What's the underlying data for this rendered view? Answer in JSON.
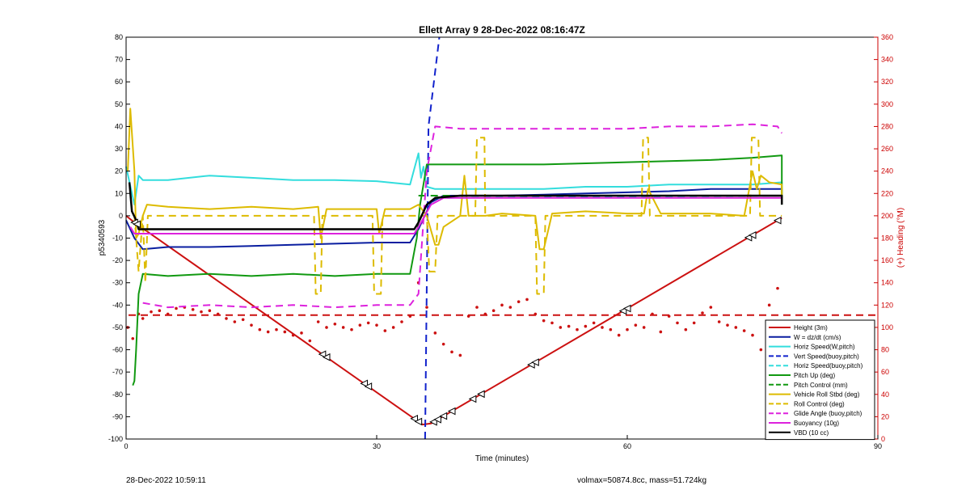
{
  "footer": {
    "timestamp": "28-Dec-2022 10:59:11",
    "stats": "volmax=50874.8cc, mass=51.724kg"
  },
  "chart_data": {
    "type": "line",
    "title": "Ellett Array 9 28-Dec-2022 08:16:47Z",
    "xlabel": "Time (minutes)",
    "ylabel": "p5340593",
    "y2label": "(+) Heading (°M)",
    "xlim": [
      0,
      90
    ],
    "ylim": [
      -100,
      80
    ],
    "y2lim": [
      0,
      360
    ],
    "xticks": [
      0,
      30,
      60,
      90
    ],
    "yticks": [
      -100,
      -90,
      -80,
      -70,
      -60,
      -50,
      -40,
      -30,
      -20,
      -10,
      0,
      10,
      20,
      30,
      40,
      50,
      60,
      70,
      80
    ],
    "y2ticks": [
      0,
      20,
      40,
      60,
      80,
      100,
      120,
      140,
      160,
      180,
      200,
      220,
      240,
      260,
      280,
      300,
      320,
      340,
      360
    ],
    "grid": false,
    "legend_position": "bottom-right",
    "axis_color": "#000000",
    "axis2_color": "#cc0000",
    "series": [
      {
        "name": "Height (3m)",
        "color": "#cc1111",
        "style": "solid",
        "width": 2,
        "x": [
          0,
          1,
          35.5,
          36.5,
          78.5
        ],
        "y": [
          0,
          -3,
          -93.5,
          -93,
          -1
        ]
      },
      {
        "name": "W = dz/dt (cm/s)",
        "color": "#0a1ea0",
        "style": "solid",
        "width": 2,
        "x": [
          0,
          1,
          2,
          5,
          10,
          15,
          20,
          25,
          30,
          34,
          35,
          36.5,
          38,
          45,
          50,
          55,
          60,
          65,
          70,
          75,
          78.5,
          78.5
        ],
        "y": [
          -2,
          -10,
          -15,
          -14,
          -14,
          -13.5,
          -13,
          -12.5,
          -12,
          -12,
          -6,
          6,
          9,
          9,
          9.5,
          10,
          10.5,
          11,
          12,
          12,
          12,
          6
        ]
      },
      {
        "name": "Horiz Speed(W,pitch)",
        "color": "#33dddd",
        "style": "solid",
        "width": 2,
        "x": [
          0,
          1,
          1.5,
          2,
          5,
          10,
          15,
          20,
          25,
          30,
          34,
          35,
          35.3,
          35.6,
          36,
          37,
          40,
          45,
          50,
          55,
          60,
          65,
          70,
          75,
          78.5,
          78.5
        ],
        "y": [
          22,
          5,
          18,
          16,
          16,
          18,
          17,
          16,
          16,
          15.5,
          14,
          28,
          17,
          22,
          13,
          12,
          12,
          12,
          12,
          13,
          13,
          14,
          14,
          14,
          15,
          8
        ]
      },
      {
        "name": "Vert Speed(buoy,pitch)",
        "color": "#1122cc",
        "style": "dashed",
        "width": 2,
        "x": [
          35.8,
          36.2,
          37.5
        ],
        "y": [
          -100,
          40,
          80
        ]
      },
      {
        "name": "Horiz Speed(buoy,pitch)",
        "color": "#33dddd",
        "style": "dashed",
        "width": 2,
        "x": [
          37,
          78.5
        ],
        "y": [
          8,
          9
        ]
      },
      {
        "name": "Pitch Up (deg)",
        "color": "#119911",
        "style": "solid",
        "width": 2,
        "x": [
          0.8,
          1,
          1.2,
          1.5,
          2,
          5,
          10,
          15,
          20,
          25,
          30,
          34,
          34.8,
          35.2,
          36,
          40,
          50,
          60,
          70,
          75,
          78.5,
          78.5
        ],
        "y": [
          -76,
          -74,
          -60,
          -35,
          -26,
          -27,
          -26,
          -27,
          -26,
          -27,
          -26,
          -26,
          -10,
          5,
          23,
          23,
          23,
          24,
          25,
          26,
          27,
          5
        ]
      },
      {
        "name": "Pitch Control (mm)",
        "color": "#119911",
        "style": "dashed",
        "width": 2,
        "x": [
          35,
          78.5
        ],
        "y": [
          9,
          9
        ]
      },
      {
        "name": "Vehicle Roll Stbd (deg)",
        "color": "#ddbb00",
        "style": "solid",
        "width": 2,
        "x": [
          0.2,
          0.5,
          1,
          1.2,
          1.5,
          2,
          2.5,
          5,
          10,
          15,
          20,
          23,
          23.3,
          24,
          30,
          30.3,
          31,
          34,
          35,
          36,
          37,
          37.4,
          38,
          40,
          40.5,
          41,
          43,
          45,
          49,
          49.5,
          50,
          51,
          55,
          60,
          62,
          62.5,
          64,
          70,
          74,
          75,
          75.5,
          76,
          77,
          78.5,
          78.5
        ],
        "y": [
          20,
          48,
          20,
          -10,
          -8,
          0,
          5,
          4,
          3,
          4,
          3,
          4,
          -10,
          3,
          3,
          -8,
          3,
          3,
          5,
          0,
          -13,
          -13,
          -5,
          0,
          18,
          0,
          0,
          1,
          0,
          -15,
          -15,
          1,
          2,
          1,
          1,
          12,
          1,
          1,
          0,
          20,
          12,
          18,
          15,
          14,
          6
        ]
      },
      {
        "name": "Roll Control (deg)",
        "color": "#ddbb00",
        "style": "dashed",
        "width": 2,
        "x": [
          1,
          1.5,
          2,
          2.3,
          2.6,
          22.5,
          22.7,
          23.3,
          23.5,
          29.5,
          29.7,
          30.5,
          30.7,
          36,
          36.3,
          37,
          37.3,
          41.8,
          42,
          42.9,
          43,
          49,
          49.2,
          50,
          50.2,
          61.7,
          61.9,
          62.5,
          62.7,
          74.7,
          74.9,
          75.7,
          75.9,
          78.5
        ],
        "y": [
          0,
          -25,
          0,
          -30,
          0,
          0,
          -35,
          -35,
          0,
          0,
          -35,
          -35,
          0,
          0,
          -25,
          -25,
          0,
          0,
          35,
          35,
          0,
          0,
          -35,
          -35,
          0,
          0,
          35,
          35,
          0,
          0,
          35,
          35,
          0,
          0
        ]
      },
      {
        "name": "Glide Angle (buoy,pitch)",
        "color": "#dd22dd",
        "style": "dashed",
        "width": 2,
        "x": [
          2,
          5,
          10,
          15,
          20,
          25,
          30,
          34,
          35,
          36,
          37,
          40,
          45,
          50,
          55,
          60,
          65,
          70,
          75,
          78,
          78.5
        ],
        "y": [
          -39,
          -41,
          -40,
          -41,
          -40,
          -41,
          -40,
          -40,
          -35,
          20,
          40,
          39,
          39,
          39,
          39,
          39,
          40,
          40,
          41,
          40,
          37
        ]
      },
      {
        "name": "Buoyancy (10g)",
        "color": "#dd22dd",
        "style": "solid",
        "width": 2,
        "x": [
          0.5,
          1,
          5,
          10,
          20,
          30,
          34.5,
          35,
          36.5,
          38,
          40,
          50,
          60,
          70,
          78.5
        ],
        "y": [
          -5,
          -8,
          -8,
          -8,
          -8,
          -8,
          -8,
          -5,
          5,
          8,
          8,
          8,
          8,
          8,
          8
        ]
      },
      {
        "name": "VBD (10 cc)",
        "color": "#000000",
        "style": "solid",
        "width": 2.5,
        "x": [
          0.4,
          0.7,
          1.2,
          1.5,
          2.5,
          5,
          10,
          20,
          30,
          34.5,
          35,
          36,
          37,
          40,
          50,
          60,
          70,
          78.5,
          78.5
        ],
        "y": [
          15,
          2,
          -2,
          -6,
          -6,
          -6,
          -6,
          -6,
          -6,
          -6,
          -3,
          5,
          8,
          9,
          9,
          9,
          9,
          9,
          5
        ]
      }
    ],
    "reference_lines": [
      {
        "axis": "y2",
        "value": 111,
        "color": "#cc1111",
        "style": "dashed"
      }
    ],
    "heading_dots": {
      "color": "#cc1111",
      "axis": "y2",
      "x": [
        0.2,
        0.8,
        1.5,
        2,
        3,
        4,
        5,
        6,
        7,
        8,
        9,
        10,
        11,
        12,
        13,
        14,
        15,
        16,
        17,
        18,
        19,
        20,
        21,
        22,
        23,
        24,
        25,
        26,
        27,
        28,
        29,
        30,
        31,
        32,
        33,
        34,
        35,
        36,
        37,
        38,
        39,
        40,
        41,
        42,
        43,
        44,
        45,
        46,
        47,
        48,
        49,
        50,
        51,
        52,
        53,
        54,
        55,
        56,
        57,
        58,
        59,
        60,
        61,
        62,
        63,
        64,
        65,
        66,
        67,
        68,
        69,
        70,
        71,
        72,
        73,
        74,
        75,
        76,
        77,
        78
      ],
      "y": [
        100,
        90,
        112,
        108,
        114,
        115,
        112,
        117,
        118,
        116,
        114,
        115,
        112,
        108,
        105,
        107,
        102,
        98,
        96,
        98,
        96,
        93,
        95,
        88,
        105,
        100,
        103,
        100,
        98,
        102,
        104,
        102,
        97,
        100,
        105,
        110,
        140,
        118,
        95,
        85,
        78,
        75,
        110,
        118,
        112,
        115,
        120,
        118,
        123,
        125,
        112,
        106,
        104,
        100,
        101,
        98,
        101,
        104,
        100,
        98,
        93,
        98,
        102,
        100,
        112,
        96,
        110,
        104,
        98,
        104,
        113,
        118,
        105,
        102,
        100,
        97,
        93,
        80,
        120,
        135
      ]
    },
    "direction_markers": {
      "series": "Height (3m)",
      "x": [
        1,
        1.3,
        23.5,
        24,
        28.5,
        29,
        34.5,
        35,
        36.8,
        37.3,
        38,
        39,
        41.5,
        42.5,
        48.5,
        49,
        59.5,
        60,
        74.5,
        75,
        78
      ]
    }
  }
}
